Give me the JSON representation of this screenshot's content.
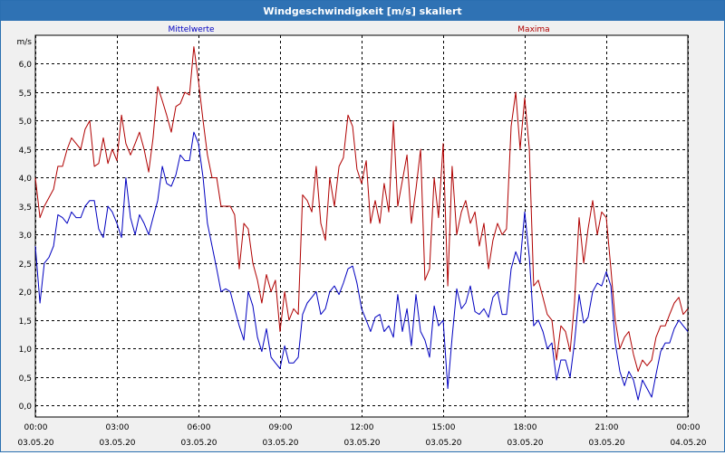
{
  "window": {
    "title": "Windgeschwindigkeit [m/s] skaliert"
  },
  "colors": {
    "series_mean": "#0000c0",
    "series_max": "#b00000",
    "grid": "#000000",
    "titlebar": "#2f72b4"
  },
  "chart_data": {
    "type": "line",
    "title": "Windgeschwindigkeit [m/s] skaliert",
    "ylabel": "m/s",
    "xlabel": "",
    "ylim": [
      -0.2,
      6.5
    ],
    "xlim": [
      0,
      24
    ],
    "grid": true,
    "yticks": [
      {
        "v": 0.0,
        "label": "0,0"
      },
      {
        "v": 0.5,
        "label": "0,5"
      },
      {
        "v": 1.0,
        "label": "1,0"
      },
      {
        "v": 1.5,
        "label": "1,5"
      },
      {
        "v": 2.0,
        "label": "2,0"
      },
      {
        "v": 2.5,
        "label": "2,5"
      },
      {
        "v": 3.0,
        "label": "3,0"
      },
      {
        "v": 3.5,
        "label": "3,5"
      },
      {
        "v": 4.0,
        "label": "4,0"
      },
      {
        "v": 4.5,
        "label": "4,5"
      },
      {
        "v": 5.0,
        "label": "5,0"
      },
      {
        "v": 5.5,
        "label": "5,5"
      },
      {
        "v": 6.0,
        "label": "6,0"
      }
    ],
    "xticks": [
      {
        "h": 0,
        "time": "00:00",
        "date": "03.05.20"
      },
      {
        "h": 3,
        "time": "03:00",
        "date": "03.05.20"
      },
      {
        "h": 6,
        "time": "06:00",
        "date": "03.05.20"
      },
      {
        "h": 9,
        "time": "09:00",
        "date": "03.05.20"
      },
      {
        "h": 12,
        "time": "12:00",
        "date": "03.05.20"
      },
      {
        "h": 15,
        "time": "15:00",
        "date": "03.05.20"
      },
      {
        "h": 18,
        "time": "18:00",
        "date": "03.05.20"
      },
      {
        "h": 21,
        "time": "21:00",
        "date": "03.05.20"
      },
      {
        "h": 24,
        "time": "00:00",
        "date": "04.05.20"
      }
    ],
    "series": [
      {
        "name": "Mittelwerte",
        "color": "#0000c0",
        "points": [
          [
            0,
            2.8
          ],
          [
            0.17,
            1.8
          ],
          [
            0.33,
            2.5
          ],
          [
            0.5,
            2.6
          ],
          [
            0.67,
            2.8
          ],
          [
            0.83,
            3.35
          ],
          [
            1.0,
            3.3
          ],
          [
            1.17,
            3.2
          ],
          [
            1.33,
            3.4
          ],
          [
            1.5,
            3.3
          ],
          [
            1.67,
            3.3
          ],
          [
            1.83,
            3.5
          ],
          [
            2.0,
            3.6
          ],
          [
            2.17,
            3.6
          ],
          [
            2.33,
            3.1
          ],
          [
            2.5,
            2.95
          ],
          [
            2.67,
            3.5
          ],
          [
            2.83,
            3.4
          ],
          [
            3.0,
            3.2
          ],
          [
            3.17,
            2.95
          ],
          [
            3.33,
            4.0
          ],
          [
            3.5,
            3.3
          ],
          [
            3.67,
            3.0
          ],
          [
            3.83,
            3.35
          ],
          [
            4.0,
            3.2
          ],
          [
            4.17,
            3.0
          ],
          [
            4.33,
            3.3
          ],
          [
            4.5,
            3.6
          ],
          [
            4.67,
            4.2
          ],
          [
            4.83,
            3.9
          ],
          [
            5.0,
            3.85
          ],
          [
            5.17,
            4.05
          ],
          [
            5.33,
            4.4
          ],
          [
            5.5,
            4.3
          ],
          [
            5.67,
            4.3
          ],
          [
            5.83,
            4.8
          ],
          [
            6.0,
            4.6
          ],
          [
            6.17,
            4.0
          ],
          [
            6.33,
            3.2
          ],
          [
            6.5,
            2.8
          ],
          [
            6.67,
            2.4
          ],
          [
            6.83,
            2.0
          ],
          [
            7.0,
            2.05
          ],
          [
            7.17,
            2.0
          ],
          [
            7.33,
            1.7
          ],
          [
            7.5,
            1.4
          ],
          [
            7.67,
            1.15
          ],
          [
            7.83,
            2.0
          ],
          [
            8.0,
            1.75
          ],
          [
            8.17,
            1.2
          ],
          [
            8.33,
            0.95
          ],
          [
            8.5,
            1.35
          ],
          [
            8.67,
            0.85
          ],
          [
            8.83,
            0.75
          ],
          [
            9.0,
            0.65
          ],
          [
            9.17,
            1.05
          ],
          [
            9.33,
            0.75
          ],
          [
            9.5,
            0.75
          ],
          [
            9.67,
            0.85
          ],
          [
            9.83,
            1.6
          ],
          [
            10.0,
            1.8
          ],
          [
            10.17,
            1.9
          ],
          [
            10.33,
            2.0
          ],
          [
            10.5,
            1.6
          ],
          [
            10.67,
            1.7
          ],
          [
            10.83,
            2.0
          ],
          [
            11.0,
            2.1
          ],
          [
            11.17,
            1.95
          ],
          [
            11.33,
            2.15
          ],
          [
            11.5,
            2.4
          ],
          [
            11.67,
            2.45
          ],
          [
            11.83,
            2.15
          ],
          [
            12.0,
            1.7
          ],
          [
            12.17,
            1.5
          ],
          [
            12.33,
            1.3
          ],
          [
            12.5,
            1.55
          ],
          [
            12.67,
            1.6
          ],
          [
            12.83,
            1.3
          ],
          [
            13.0,
            1.4
          ],
          [
            13.17,
            1.2
          ],
          [
            13.33,
            1.95
          ],
          [
            13.5,
            1.3
          ],
          [
            13.67,
            1.7
          ],
          [
            13.83,
            1.05
          ],
          [
            14.0,
            1.95
          ],
          [
            14.17,
            1.3
          ],
          [
            14.33,
            1.15
          ],
          [
            14.5,
            0.85
          ],
          [
            14.67,
            1.75
          ],
          [
            14.83,
            1.4
          ],
          [
            15.0,
            1.5
          ],
          [
            15.17,
            0.3
          ],
          [
            15.33,
            1.2
          ],
          [
            15.5,
            2.05
          ],
          [
            15.67,
            1.7
          ],
          [
            15.83,
            1.8
          ],
          [
            16.0,
            2.1
          ],
          [
            16.17,
            1.65
          ],
          [
            16.33,
            1.6
          ],
          [
            16.5,
            1.7
          ],
          [
            16.67,
            1.55
          ],
          [
            16.83,
            1.9
          ],
          [
            17.0,
            2.0
          ],
          [
            17.17,
            1.6
          ],
          [
            17.33,
            1.6
          ],
          [
            17.5,
            2.4
          ],
          [
            17.67,
            2.7
          ],
          [
            17.83,
            2.5
          ],
          [
            18.0,
            3.4
          ],
          [
            18.17,
            2.6
          ],
          [
            18.33,
            1.4
          ],
          [
            18.5,
            1.5
          ],
          [
            18.67,
            1.3
          ],
          [
            18.83,
            1.0
          ],
          [
            19.0,
            1.1
          ],
          [
            19.17,
            0.45
          ],
          [
            19.33,
            0.8
          ],
          [
            19.5,
            0.8
          ],
          [
            19.67,
            0.5
          ],
          [
            19.83,
            1.1
          ],
          [
            20.0,
            1.95
          ],
          [
            20.17,
            1.45
          ],
          [
            20.33,
            1.55
          ],
          [
            20.5,
            2.0
          ],
          [
            20.67,
            2.15
          ],
          [
            20.83,
            2.1
          ],
          [
            21.0,
            2.35
          ],
          [
            21.17,
            2.1
          ],
          [
            21.33,
            1.1
          ],
          [
            21.5,
            0.6
          ],
          [
            21.67,
            0.35
          ],
          [
            21.83,
            0.6
          ],
          [
            22.0,
            0.45
          ],
          [
            22.17,
            0.1
          ],
          [
            22.33,
            0.45
          ],
          [
            22.5,
            0.3
          ],
          [
            22.67,
            0.15
          ],
          [
            22.83,
            0.55
          ],
          [
            23.0,
            0.95
          ],
          [
            23.17,
            1.1
          ],
          [
            23.33,
            1.1
          ],
          [
            23.5,
            1.35
          ],
          [
            23.67,
            1.5
          ],
          [
            23.83,
            1.4
          ],
          [
            24.0,
            1.3
          ]
        ]
      },
      {
        "name": "Maxima",
        "color": "#b00000",
        "points": [
          [
            0,
            4.0
          ],
          [
            0.17,
            3.3
          ],
          [
            0.33,
            3.5
          ],
          [
            0.5,
            3.65
          ],
          [
            0.67,
            3.8
          ],
          [
            0.83,
            4.2
          ],
          [
            1.0,
            4.2
          ],
          [
            1.17,
            4.5
          ],
          [
            1.33,
            4.7
          ],
          [
            1.5,
            4.6
          ],
          [
            1.67,
            4.5
          ],
          [
            1.83,
            4.85
          ],
          [
            2.0,
            5.0
          ],
          [
            2.17,
            4.2
          ],
          [
            2.33,
            4.25
          ],
          [
            2.5,
            4.7
          ],
          [
            2.67,
            4.25
          ],
          [
            2.83,
            4.5
          ],
          [
            3.0,
            4.3
          ],
          [
            3.17,
            5.1
          ],
          [
            3.33,
            4.6
          ],
          [
            3.5,
            4.4
          ],
          [
            3.67,
            4.6
          ],
          [
            3.83,
            4.8
          ],
          [
            4.0,
            4.5
          ],
          [
            4.17,
            4.1
          ],
          [
            4.33,
            4.7
          ],
          [
            4.5,
            5.6
          ],
          [
            4.67,
            5.35
          ],
          [
            4.83,
            5.1
          ],
          [
            5.0,
            4.8
          ],
          [
            5.17,
            5.25
          ],
          [
            5.33,
            5.3
          ],
          [
            5.5,
            5.5
          ],
          [
            5.67,
            5.45
          ],
          [
            5.83,
            6.3
          ],
          [
            6.0,
            5.7
          ],
          [
            6.17,
            5.0
          ],
          [
            6.33,
            4.4
          ],
          [
            6.5,
            4.0
          ],
          [
            6.67,
            4.0
          ],
          [
            6.83,
            3.5
          ],
          [
            7.0,
            3.5
          ],
          [
            7.17,
            3.5
          ],
          [
            7.33,
            3.35
          ],
          [
            7.5,
            2.4
          ],
          [
            7.67,
            3.2
          ],
          [
            7.83,
            3.1
          ],
          [
            8.0,
            2.5
          ],
          [
            8.17,
            2.2
          ],
          [
            8.33,
            1.8
          ],
          [
            8.5,
            2.3
          ],
          [
            8.67,
            2.0
          ],
          [
            8.83,
            2.2
          ],
          [
            9.0,
            1.3
          ],
          [
            9.17,
            2.0
          ],
          [
            9.33,
            1.5
          ],
          [
            9.5,
            1.7
          ],
          [
            9.67,
            1.6
          ],
          [
            9.83,
            3.7
          ],
          [
            10.0,
            3.6
          ],
          [
            10.17,
            3.4
          ],
          [
            10.33,
            4.2
          ],
          [
            10.5,
            3.2
          ],
          [
            10.67,
            2.9
          ],
          [
            10.83,
            4.0
          ],
          [
            11.0,
            3.5
          ],
          [
            11.17,
            4.2
          ],
          [
            11.33,
            4.35
          ],
          [
            11.5,
            5.1
          ],
          [
            11.67,
            4.9
          ],
          [
            11.83,
            4.15
          ],
          [
            12.0,
            3.9
          ],
          [
            12.17,
            4.3
          ],
          [
            12.33,
            3.2
          ],
          [
            12.5,
            3.6
          ],
          [
            12.67,
            3.2
          ],
          [
            12.83,
            3.9
          ],
          [
            13.0,
            3.4
          ],
          [
            13.17,
            5.0
          ],
          [
            13.33,
            3.5
          ],
          [
            13.67,
            4.4
          ],
          [
            13.83,
            3.2
          ],
          [
            14.0,
            3.8
          ],
          [
            14.17,
            4.5
          ],
          [
            14.33,
            2.2
          ],
          [
            14.5,
            2.4
          ],
          [
            14.67,
            4.0
          ],
          [
            14.83,
            3.3
          ],
          [
            15.0,
            4.6
          ],
          [
            15.17,
            2.1
          ],
          [
            15.33,
            4.2
          ],
          [
            15.5,
            3.0
          ],
          [
            15.67,
            3.4
          ],
          [
            15.83,
            3.6
          ],
          [
            16.0,
            3.2
          ],
          [
            16.17,
            3.4
          ],
          [
            16.33,
            2.8
          ],
          [
            16.5,
            3.2
          ],
          [
            16.67,
            2.4
          ],
          [
            16.83,
            2.9
          ],
          [
            17.0,
            3.2
          ],
          [
            17.17,
            3.0
          ],
          [
            17.33,
            3.1
          ],
          [
            17.5,
            4.9
          ],
          [
            17.67,
            5.5
          ],
          [
            17.83,
            4.5
          ],
          [
            18.0,
            5.4
          ],
          [
            18.17,
            4.5
          ],
          [
            18.33,
            2.1
          ],
          [
            18.5,
            2.2
          ],
          [
            18.67,
            1.9
          ],
          [
            18.83,
            1.6
          ],
          [
            19.0,
            1.5
          ],
          [
            19.17,
            0.8
          ],
          [
            19.33,
            1.4
          ],
          [
            19.5,
            1.3
          ],
          [
            19.67,
            0.95
          ],
          [
            19.83,
            1.8
          ],
          [
            20.0,
            3.3
          ],
          [
            20.17,
            2.5
          ],
          [
            20.33,
            3.1
          ],
          [
            20.5,
            3.6
          ],
          [
            20.67,
            3.0
          ],
          [
            20.83,
            3.4
          ],
          [
            21.0,
            3.3
          ],
          [
            21.17,
            2.4
          ],
          [
            21.33,
            1.5
          ],
          [
            21.5,
            1.0
          ],
          [
            21.67,
            1.2
          ],
          [
            21.83,
            1.3
          ],
          [
            22.0,
            0.9
          ],
          [
            22.17,
            0.6
          ],
          [
            22.33,
            0.8
          ],
          [
            22.5,
            0.7
          ],
          [
            22.67,
            0.8
          ],
          [
            22.83,
            1.2
          ],
          [
            23.0,
            1.4
          ],
          [
            23.17,
            1.4
          ],
          [
            23.33,
            1.6
          ],
          [
            23.5,
            1.8
          ],
          [
            23.67,
            1.9
          ],
          [
            23.83,
            1.6
          ],
          [
            24.0,
            1.7
          ]
        ]
      }
    ]
  }
}
